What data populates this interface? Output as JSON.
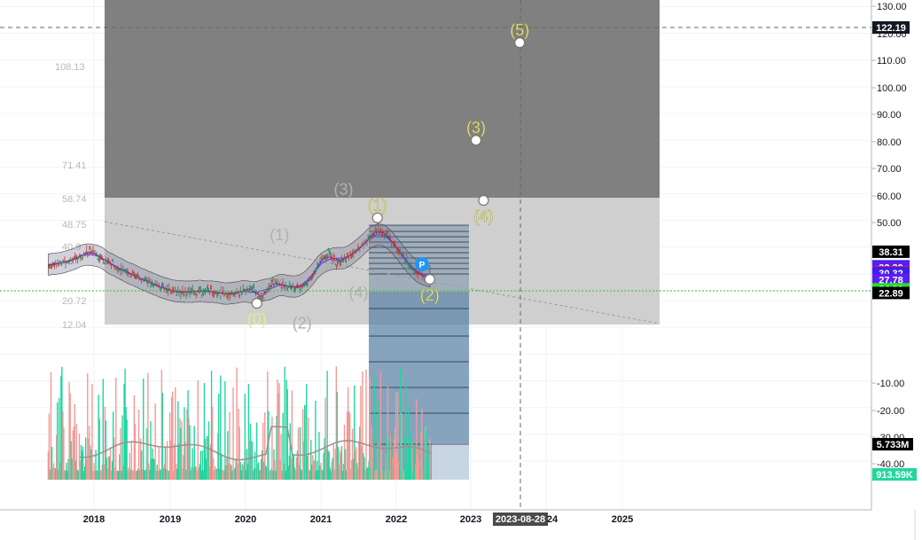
{
  "chart_data": {
    "type": "candlestick",
    "x_ticks": [
      "2018",
      "2019",
      "2020",
      "2021",
      "2022",
      "2023",
      "2023-08-28",
      "24",
      "2025"
    ],
    "y_ticks": [
      "130.00",
      "120.00",
      "110.00",
      "100.00",
      "90.00",
      "80.00",
      "70.00",
      "60.00",
      "50.00",
      "-10.00",
      "-20.00",
      "-30.00",
      "-40.00"
    ],
    "ylim": [
      -45,
      133
    ],
    "price_badges": [
      {
        "value": 122.19,
        "label": "122.19",
        "color": "#131722",
        "kind": "crosshair"
      },
      {
        "value": 38.31,
        "label": "38.31",
        "color": "#000000"
      },
      {
        "value": 32.86,
        "label": "32.86",
        "color": "#3d1ef5"
      },
      {
        "value": 32.39,
        "label": "32.39",
        "color": "#5b1ef2"
      },
      {
        "value": 30.6,
        "label": "30.60",
        "color": "#f21a1a"
      },
      {
        "value": 30.32,
        "label": "30.32",
        "color": "#3d1ef5"
      },
      {
        "value": 27.78,
        "label": "27.78",
        "color": "#5b1ef2"
      },
      {
        "value": 24.28,
        "label": "24.28",
        "color": "#22e02b"
      },
      {
        "value": 22.89,
        "label": "22.89",
        "color": "#000000"
      }
    ],
    "volume_badges": [
      {
        "label": "5.733M",
        "color": "#000000"
      },
      {
        "label": "913.59K",
        "color": "#22d69c"
      }
    ],
    "fib_levels": [
      "108.13",
      "71.41",
      "58.74",
      "48.75",
      "40.9",
      "20.72",
      "12.04"
    ],
    "elliott_primary": [
      {
        "label": "(1)",
        "date": "2021.75",
        "price": 51
      },
      {
        "label": "(2)",
        "date": "2022.45",
        "price": 28
      },
      {
        "label": "(3)",
        "date": "2023.07",
        "price": 80
      },
      {
        "label": "(4)",
        "date": "2023.17",
        "price": 57.5
      },
      {
        "label": "(5)",
        "date": "2023.65",
        "price": 116.5
      }
    ],
    "elliott_secondary": [
      {
        "label": "(0)",
        "date": "2020.15",
        "price": 19
      },
      {
        "label": "(1)",
        "date": "2020.45",
        "price": 40
      },
      {
        "label": "(2)",
        "date": "2020.75",
        "price": 17.5
      },
      {
        "label": "(3)",
        "date": "2021.3",
        "price": 57
      },
      {
        "label": "(4)",
        "date": "2021.5",
        "price": 29
      }
    ],
    "pivot_marker": "P",
    "highlight_date": "2023-08-28"
  }
}
